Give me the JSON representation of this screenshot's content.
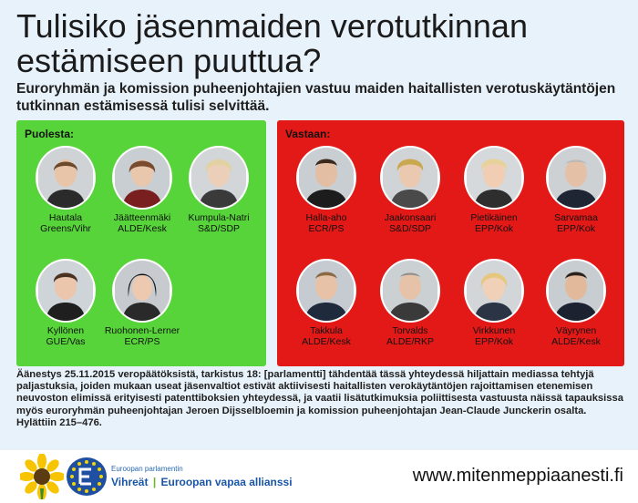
{
  "title": "Tulisiko jäsenmaiden verotutkinnan estämiseen puuttua?",
  "subtitle": "Euroryhmän ja komission puheenjohtajien vastuu maiden haitallisten verotuskäytäntöjen tutkinnan estämisessä tulisi selvittää.",
  "for": {
    "label": "Puolesta:",
    "people": [
      {
        "name": "Hautala",
        "group": "Greens/Vihr"
      },
      {
        "name": "Jäätteenmäki",
        "group": "ALDE/Kesk"
      },
      {
        "name": "Kumpula-Natri",
        "group": "S&D/SDP"
      },
      {
        "name": "Kyllönen",
        "group": "GUE/Vas"
      },
      {
        "name": "Ruohonen-Lerner",
        "group": "ECR/PS"
      }
    ]
  },
  "against": {
    "label": "Vastaan:",
    "people": [
      {
        "name": "Halla-aho",
        "group": "ECR/PS"
      },
      {
        "name": "Jaakonsaari",
        "group": "S&D/SDP"
      },
      {
        "name": "Pietikäinen",
        "group": "EPP/Kok"
      },
      {
        "name": "Sarvamaa",
        "group": "EPP/Kok"
      },
      {
        "name": "Takkula",
        "group": "ALDE/Kesk"
      },
      {
        "name": "Torvalds",
        "group": "ALDE/RKP"
      },
      {
        "name": "Virkkunen",
        "group": "EPP/Kok"
      },
      {
        "name": "Väyrynen",
        "group": "ALDE/Kesk"
      }
    ]
  },
  "description": "Äänestys 25.11.2015 veropäätöksistä, tarkistus 18: [parlamentti] tähdentää tässä yhteydessä hiljattain mediassa tehtyjä paljastuksia, joiden mukaan useat jäsenvaltiot estivät aktiivisesti haitallisten verokäytäntöjen rajoittamisen etenemisen neuvoston elimissä erityisesti patenttiboksien yhteydessä, ja vaatii lisätutkimuksia poliittisesta vastuusta näissä tapauksissa myös euroryhmän puheenjohtajan Jeroen Dijsselbloemin ja komission puheenjohtajan Jean-Claude Junckerin osalta.",
  "result": "Hylättiin 215–476.",
  "footer": {
    "logo_small": "Euroopan parlamentin",
    "logo_big_1": "Vihreät",
    "logo_sep": "|",
    "logo_big_2": "Euroopan vapaa allianssi",
    "website": "www.mitenmeppiaanesti.fi"
  },
  "colors": {
    "for_panel": "#57d43a",
    "against_panel": "#e21917",
    "background": "#e8f2fa"
  }
}
